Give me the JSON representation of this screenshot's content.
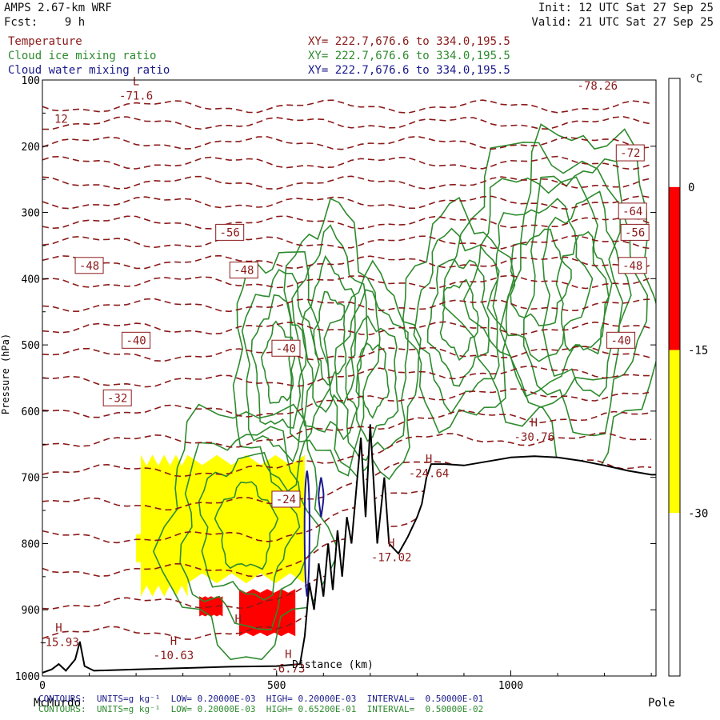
{
  "header": {
    "title": "AMPS 2.67-km WRF",
    "forecast": "Fcst:    9 h",
    "init": "Init: 12 UTC Sat 27 Sep 25",
    "valid": "Valid: 21 UTC Sat 27 Sep 25"
  },
  "legend": [
    {
      "label": "Temperature",
      "xy": "XY= 222.7,676.6 to 334.0,195.5",
      "color": "#8b1a1a"
    },
    {
      "label": "Cloud ice mixing ratio",
      "xy": "XY= 222.7,676.6 to 334.0,195.5",
      "color": "#2e8b2e"
    },
    {
      "label": "Cloud water mixing ratio",
      "xy": "XY= 222.7,676.6 to 334.0,195.5",
      "color": "#1a1a8b"
    }
  ],
  "footer": {
    "water_contours": "CONTOURS:  UNITS=g kg⁻¹  LOW= 0.20000E-03  HIGH= 0.20000E-03  INTERVAL=  0.50000E-01",
    "ice_contours": "CONTOURS:  UNITS=g kg⁻¹  LOW= 0.20000E-03  HIGH= 0.65200E-01  INTERVAL=  0.50000E-02"
  },
  "chart_data": {
    "type": "cross-section",
    "xlabel": "Distance (km)",
    "ylabel": "Pressure (hPa)",
    "xlim": [
      0,
      1310
    ],
    "ylim": [
      1000,
      100
    ],
    "x_ticks": [
      0,
      500,
      1000
    ],
    "y_ticks": [
      100,
      200,
      300,
      400,
      500,
      600,
      700,
      800,
      900,
      1000
    ],
    "x_end_labels": {
      "left": "McMurdo",
      "right": "Pole"
    },
    "colorbar": {
      "unit": "°C",
      "tick_labels": [
        "0",
        "-15",
        "-30"
      ],
      "bins": [
        {
          "range": [
            0,
            10
          ],
          "color": "#ffffff"
        },
        {
          "range": [
            -15,
            0
          ],
          "color": "#ff0000"
        },
        {
          "range": [
            -30,
            -15
          ],
          "color": "#ffff00"
        },
        {
          "range": [
            -45,
            -30
          ],
          "color": "#ffffff"
        }
      ]
    },
    "temperature_contour_labels": [
      {
        "text": "-72",
        "x": 1255,
        "p": 210
      },
      {
        "text": "-64",
        "x": 1260,
        "p": 298
      },
      {
        "text": "-56",
        "x": 400,
        "p": 330
      },
      {
        "text": "-56",
        "x": 1265,
        "p": 330
      },
      {
        "text": "-48",
        "x": 100,
        "p": 380
      },
      {
        "text": "-48",
        "x": 430,
        "p": 387
      },
      {
        "text": "-48",
        "x": 1260,
        "p": 380
      },
      {
        "text": "-40",
        "x": 200,
        "p": 493
      },
      {
        "text": "-40",
        "x": 520,
        "p": 505
      },
      {
        "text": "-40",
        "x": 1235,
        "p": 493
      },
      {
        "text": "-32",
        "x": 160,
        "p": 580
      },
      {
        "text": "-24",
        "x": 520,
        "p": 733
      }
    ],
    "extrema_labels": [
      {
        "kind": "L",
        "value": "-71.6",
        "x": 200,
        "p": 120
      },
      {
        "kind": "",
        "value": "-78.26",
        "x": 1185,
        "p": 105
      },
      {
        "kind": "",
        "value": "12",
        "x": 40,
        "p": 155
      },
      {
        "kind": "H",
        "value": "-30.76",
        "x": 1050,
        "p": 635
      },
      {
        "kind": "H",
        "value": "-24.64",
        "x": 825,
        "p": 690
      },
      {
        "kind": "H",
        "value": "-17.02",
        "x": 745,
        "p": 817
      },
      {
        "kind": "H",
        "value": "-15.93",
        "x": 35,
        "p": 945
      },
      {
        "kind": "H",
        "value": "-10.63",
        "x": 280,
        "p": 965
      },
      {
        "kind": "",
        "value": "H",
        "x": 418,
        "p": 910
      },
      {
        "kind": "H",
        "value": "-6.73",
        "x": 525,
        "p": 985
      }
    ],
    "terrain_surface": [
      [
        0,
        995
      ],
      [
        20,
        990
      ],
      [
        35,
        982
      ],
      [
        50,
        992
      ],
      [
        70,
        975
      ],
      [
        80,
        948
      ],
      [
        90,
        985
      ],
      [
        110,
        992
      ],
      [
        200,
        990
      ],
      [
        300,
        988
      ],
      [
        400,
        986
      ],
      [
        500,
        985
      ],
      [
        550,
        982
      ],
      [
        560,
        940
      ],
      [
        570,
        860
      ],
      [
        580,
        900
      ],
      [
        590,
        830
      ],
      [
        600,
        880
      ],
      [
        610,
        800
      ],
      [
        620,
        870
      ],
      [
        630,
        780
      ],
      [
        640,
        850
      ],
      [
        650,
        760
      ],
      [
        660,
        800
      ],
      [
        680,
        640
      ],
      [
        690,
        760
      ],
      [
        700,
        620
      ],
      [
        715,
        800
      ],
      [
        730,
        700
      ],
      [
        740,
        800
      ],
      [
        760,
        815
      ],
      [
        780,
        790
      ],
      [
        800,
        760
      ],
      [
        810,
        740
      ],
      [
        820,
        700
      ],
      [
        830,
        680
      ],
      [
        860,
        680
      ],
      [
        900,
        682
      ],
      [
        950,
        676
      ],
      [
        1000,
        670
      ],
      [
        1050,
        668
      ],
      [
        1100,
        670
      ],
      [
        1150,
        675
      ],
      [
        1200,
        682
      ],
      [
        1250,
        690
      ],
      [
        1300,
        696
      ],
      [
        1310,
        696
      ]
    ],
    "temperature_shading": [
      {
        "category": "-30 to -15",
        "x": [
          210,
          310
        ],
        "p": [
          670,
          880
        ]
      },
      {
        "category": "-30 to -15",
        "x": [
          310,
          560
        ],
        "p": [
          670,
          860
        ]
      },
      {
        "category": "-30 to -15",
        "x": [
          200,
          210
        ],
        "p": [
          785,
          830
        ]
      },
      {
        "category": "-15 to 0",
        "x": [
          335,
          385
        ],
        "p": [
          880,
          910
        ]
      },
      {
        "category": "-15 to 0",
        "x": [
          420,
          540
        ],
        "p": [
          870,
          940
        ]
      }
    ],
    "cloud_ice_regions": [
      {
        "x": [
          260,
          610
        ],
        "p": [
          590,
          960
        ]
      },
      {
        "x": [
          410,
          600
        ],
        "p": [
          360,
          700
        ]
      },
      {
        "x": [
          520,
          710
        ],
        "p": [
          300,
          680
        ]
      },
      {
        "x": [
          610,
          800
        ],
        "p": [
          400,
          700
        ]
      },
      {
        "x": [
          780,
          1000
        ],
        "p": [
          300,
          620
        ]
      },
      {
        "x": [
          880,
          1240
        ],
        "p": [
          200,
          600
        ]
      },
      {
        "x": [
          1000,
          1310
        ],
        "p": [
          170,
          680
        ]
      }
    ]
  }
}
